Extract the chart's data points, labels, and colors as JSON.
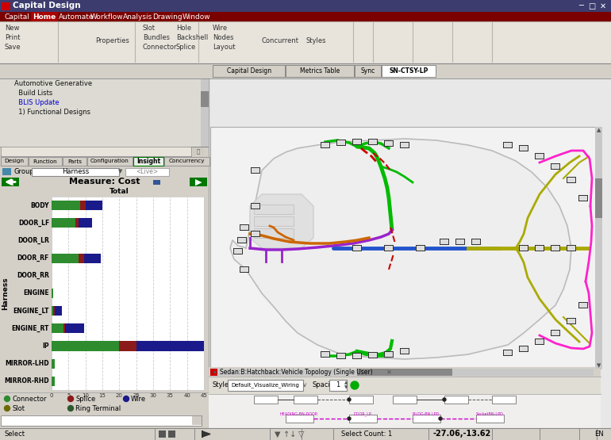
{
  "title": "Capital Design",
  "measure_title": "Measure: Cost",
  "group_value": "Harness",
  "y_label": "Harness",
  "x_label": "Total",
  "categories": [
    "BODY",
    "DOOR_LF",
    "DOOR_LR",
    "DOOR_RF",
    "DOOR_RR",
    "ENGINE",
    "ENGINE_LT",
    "ENGINE_RT",
    "IP",
    "MIRROR-LHD",
    "MIRROR-RHD"
  ],
  "connector": [
    8.5,
    7.0,
    0.0,
    8.0,
    0.0,
    0.5,
    0.5,
    3.5,
    20.0,
    1.0,
    1.0
  ],
  "splice": [
    1.5,
    1.0,
    0.0,
    1.5,
    0.0,
    0.0,
    0.5,
    0.5,
    5.0,
    0.0,
    0.0
  ],
  "wire": [
    5.0,
    4.0,
    0.0,
    5.0,
    0.0,
    0.0,
    2.0,
    5.5,
    20.0,
    0.0,
    0.0
  ],
  "xlim": [
    0,
    45
  ],
  "xticks": [
    0,
    5,
    10,
    15,
    20,
    25,
    30,
    35,
    40,
    45
  ],
  "color_connector": "#2e8b2e",
  "color_splice": "#8b1a1a",
  "color_wire": "#1a1a8b",
  "color_slot": "#6b6b00",
  "color_ring": "#2e5a2e",
  "bg_color": "#d4d0c8",
  "title_bar_bg": "#3c3c6e",
  "menu_bar_bg": "#7b0000",
  "home_tab_bg": "#8b0000",
  "toolbar_bg": "#e8e4dc",
  "left_panel_bg": "#d4d0c8",
  "chart_bg": "#ffffff",
  "insight_tab_bg": "#e8f0e8",
  "car_area_bg": "#f0f0f0",
  "bottom_panel_bg": "#d4d0c8"
}
